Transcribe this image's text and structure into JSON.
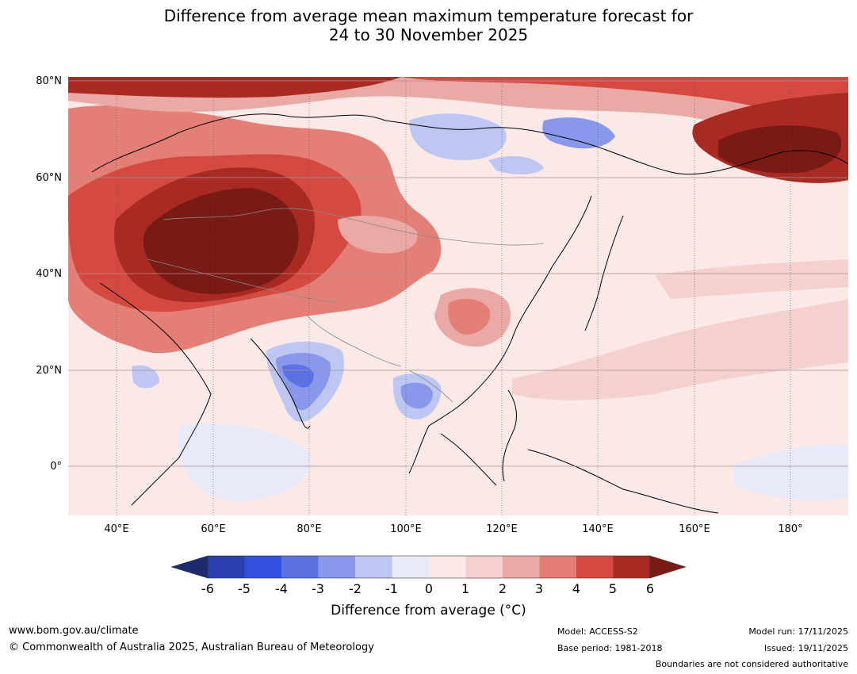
{
  "title": {
    "line1": "Difference from average mean maximum temperature forecast for",
    "line2": "24 to 30 November 2025"
  },
  "map": {
    "lat_labels": [
      "80°N",
      "60°N",
      "40°N",
      "20°N",
      "0°"
    ],
    "lon_labels": [
      "40°E",
      "60°E",
      "80°E",
      "100°E",
      "120°E",
      "140°E",
      "160°E",
      "180°"
    ]
  },
  "colorbar": {
    "ticks": [
      "-6",
      "-5",
      "-4",
      "-3",
      "-2",
      "-1",
      "0",
      "1",
      "2",
      "3",
      "4",
      "5",
      "6"
    ],
    "title": "Difference from average (°C)",
    "colors": {
      "lt_-6": "#1f2a6e",
      "b_-6_-5": "#2a3fae",
      "b_-5_-4": "#3050dd",
      "b_-4_-3": "#5c72e2",
      "b_-3_-2": "#8898ea",
      "b_-2_-1": "#bec6f2",
      "b_-1_0": "#e8eafa",
      "b_0_1": "#fdeae8",
      "b_1_2": "#f4d1cf",
      "b_2_3": "#eba9a5",
      "b_3_4": "#e47f78",
      "b_4_5": "#d54a40",
      "b_5_6": "#a92a23",
      "gt_6": "#7a1a15"
    }
  },
  "footer": {
    "website": "www.bom.gov.au/climate",
    "copyright": "© Commonwealth of Australia 2025, Australian Bureau of Meteorology",
    "model": "Model: ACCESS-S2",
    "base_period": "Base period: 1981-2018",
    "model_run": "Model run: 17/11/2025",
    "issued": "Issued: 19/11/2025",
    "disclaimer": "Boundaries are not considered authoritative"
  }
}
